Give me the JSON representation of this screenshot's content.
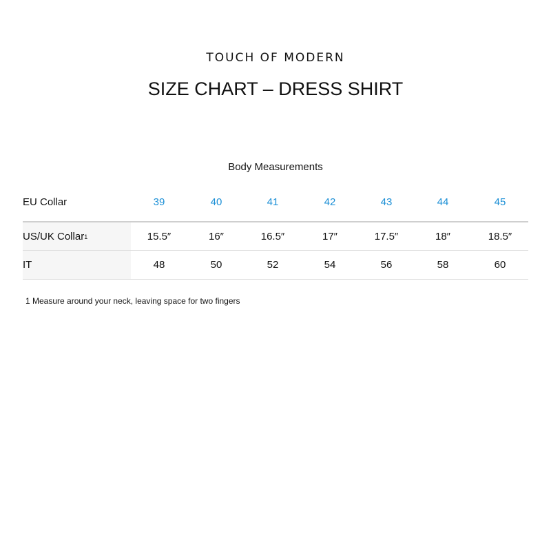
{
  "brand": "TOUCH OF MODERN",
  "title": "SIZE CHART – DRESS SHIRT",
  "subtitle": "Body Measurements",
  "table": {
    "rows": [
      {
        "label": "EU Collar",
        "sup": "",
        "values": [
          "39",
          "40",
          "41",
          "42",
          "43",
          "44",
          "45"
        ]
      },
      {
        "label": "US/UK Collar",
        "sup": "1",
        "values": [
          "15.5″",
          "16″",
          "16.5″",
          "17″",
          "17.5″",
          "18″",
          "18.5″"
        ]
      },
      {
        "label": "IT",
        "sup": "",
        "values": [
          "48",
          "50",
          "52",
          "54",
          "56",
          "58",
          "60"
        ]
      }
    ]
  },
  "footnote": "1 Measure around your neck, leaving space for two fingers",
  "colors": {
    "accent": "#1b8fd6"
  }
}
